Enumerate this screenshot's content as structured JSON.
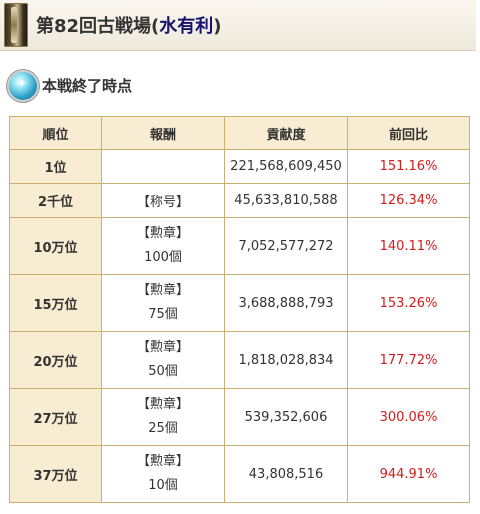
{
  "header": {
    "title_prefix": "第82回古戦場(",
    "title_accent": "水有利",
    "title_suffix": ")"
  },
  "section": {
    "title": "本戦終了時点"
  },
  "table": {
    "headers": [
      "順位",
      "報酬",
      "貢献度",
      "前回比"
    ],
    "rows": [
      {
        "rank": "1位",
        "reward_type": "",
        "reward_qty": "",
        "contribution": "221,568,609,450",
        "ratio": "151.16%"
      },
      {
        "rank": "2千位",
        "reward_type": "【称号】",
        "reward_qty": "",
        "contribution": "45,633,810,588",
        "ratio": "126.34%"
      },
      {
        "rank": "10万位",
        "reward_type": "【勲章】",
        "reward_qty": "100個",
        "contribution": "7,052,577,272",
        "ratio": "140.11%"
      },
      {
        "rank": "15万位",
        "reward_type": "【勲章】",
        "reward_qty": "75個",
        "contribution": "3,688,888,793",
        "ratio": "153.26%"
      },
      {
        "rank": "20万位",
        "reward_type": "【勲章】",
        "reward_qty": "50個",
        "contribution": "1,818,028,834",
        "ratio": "177.72%"
      },
      {
        "rank": "27万位",
        "reward_type": "【勲章】",
        "reward_qty": "25個",
        "contribution": "539,352,606",
        "ratio": "300.06%"
      },
      {
        "rank": "37万位",
        "reward_type": "【勲章】",
        "reward_qty": "10個",
        "contribution": "43,808,516",
        "ratio": "944.91%"
      }
    ]
  },
  "colors": {
    "header_accent": "#15146e",
    "ratio_text": "#d41c1c",
    "cell_highlight": "#f8edd2",
    "table_border": "#ccb070"
  }
}
